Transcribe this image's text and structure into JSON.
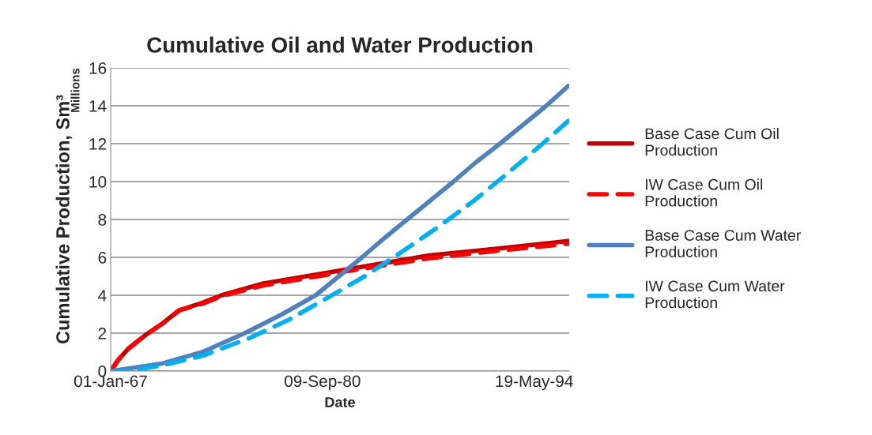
{
  "chart_data": {
    "type": "line",
    "title": "Cumulative Oil and Water Production",
    "xlabel": "Date",
    "ylabel": "Cumulative Production, Sm³",
    "annotations": [
      "Millions"
    ],
    "xlim": [
      "1967-01-01",
      "1996-08-23"
    ],
    "xticks": [
      {
        "value": "1967-01-01",
        "label": "01-Jan-67"
      },
      {
        "value": "1980-09-09",
        "label": "09-Sep-80"
      },
      {
        "value": "1994-05-19",
        "label": "19-May-94"
      }
    ],
    "ylim": [
      0,
      16
    ],
    "yticks": [
      0,
      2,
      4,
      6,
      8,
      10,
      12,
      14,
      16
    ],
    "grid": "y",
    "legend": "right",
    "marker": "none",
    "series": [
      {
        "name": "Base Case Cum Oil Production",
        "color": "#c00000",
        "line_style": "solid",
        "x": [
          "1967-01",
          "1967-07",
          "1968-03",
          "1969-04",
          "1970-05",
          "1971-06",
          "1972-12",
          "1974-03",
          "1976-10",
          "1980-01",
          "1983-04",
          "1987-08",
          "1991-11",
          "1996-08"
        ],
        "values": [
          0,
          0.6,
          1.2,
          1.9,
          2.5,
          3.2,
          3.6,
          4.0,
          4.6,
          5.05,
          5.5,
          6.1,
          6.45,
          6.86
        ]
      },
      {
        "name": "IW Case Cum Oil Production",
        "color": "#ff0000",
        "line_style": "dashed",
        "x": [
          "1967-01",
          "1967-07",
          "1968-03",
          "1969-04",
          "1970-05",
          "1971-06",
          "1972-12",
          "1974-03",
          "1976-10",
          "1980-01",
          "1983-04",
          "1987-08",
          "1991-11",
          "1996-08"
        ],
        "values": [
          0,
          0.6,
          1.2,
          1.9,
          2.5,
          3.2,
          3.55,
          3.95,
          4.5,
          4.95,
          5.4,
          5.95,
          6.33,
          6.72
        ]
      },
      {
        "name": "Base Case Cum Water Production",
        "color": "#4f81bd",
        "line_style": "solid",
        "x": [
          "1967-01",
          "1970-05",
          "1972-12",
          "1975-09",
          "1978-02",
          "1980-04",
          "1981-10",
          "1983-04",
          "1984-09",
          "1986-03",
          "1987-09",
          "1989-03",
          "1990-08",
          "1992-03",
          "1993-09",
          "1995-03",
          "1996-08"
        ],
        "values": [
          0,
          0.4,
          1.0,
          2,
          3,
          4,
          5,
          6,
          7,
          8,
          9,
          10,
          11,
          12,
          13,
          14,
          15.05
        ]
      },
      {
        "name": "IW Case Cum Water Production",
        "color": "#00b0f0",
        "line_style": "dashed",
        "x": [
          "1967-01",
          "1968-03",
          "1970-05",
          "1972-12",
          "1976-01",
          "1978-07",
          "1981-02",
          "1983-06",
          "1985-11",
          "1988-03",
          "1990-07",
          "1992-10",
          "1994-12",
          "1996-08"
        ],
        "values": [
          0,
          0,
          0.3,
          0.8,
          1.75,
          2.7,
          3.9,
          5.0,
          6.3,
          7.6,
          9.0,
          10.5,
          12.0,
          13.2
        ]
      }
    ]
  }
}
